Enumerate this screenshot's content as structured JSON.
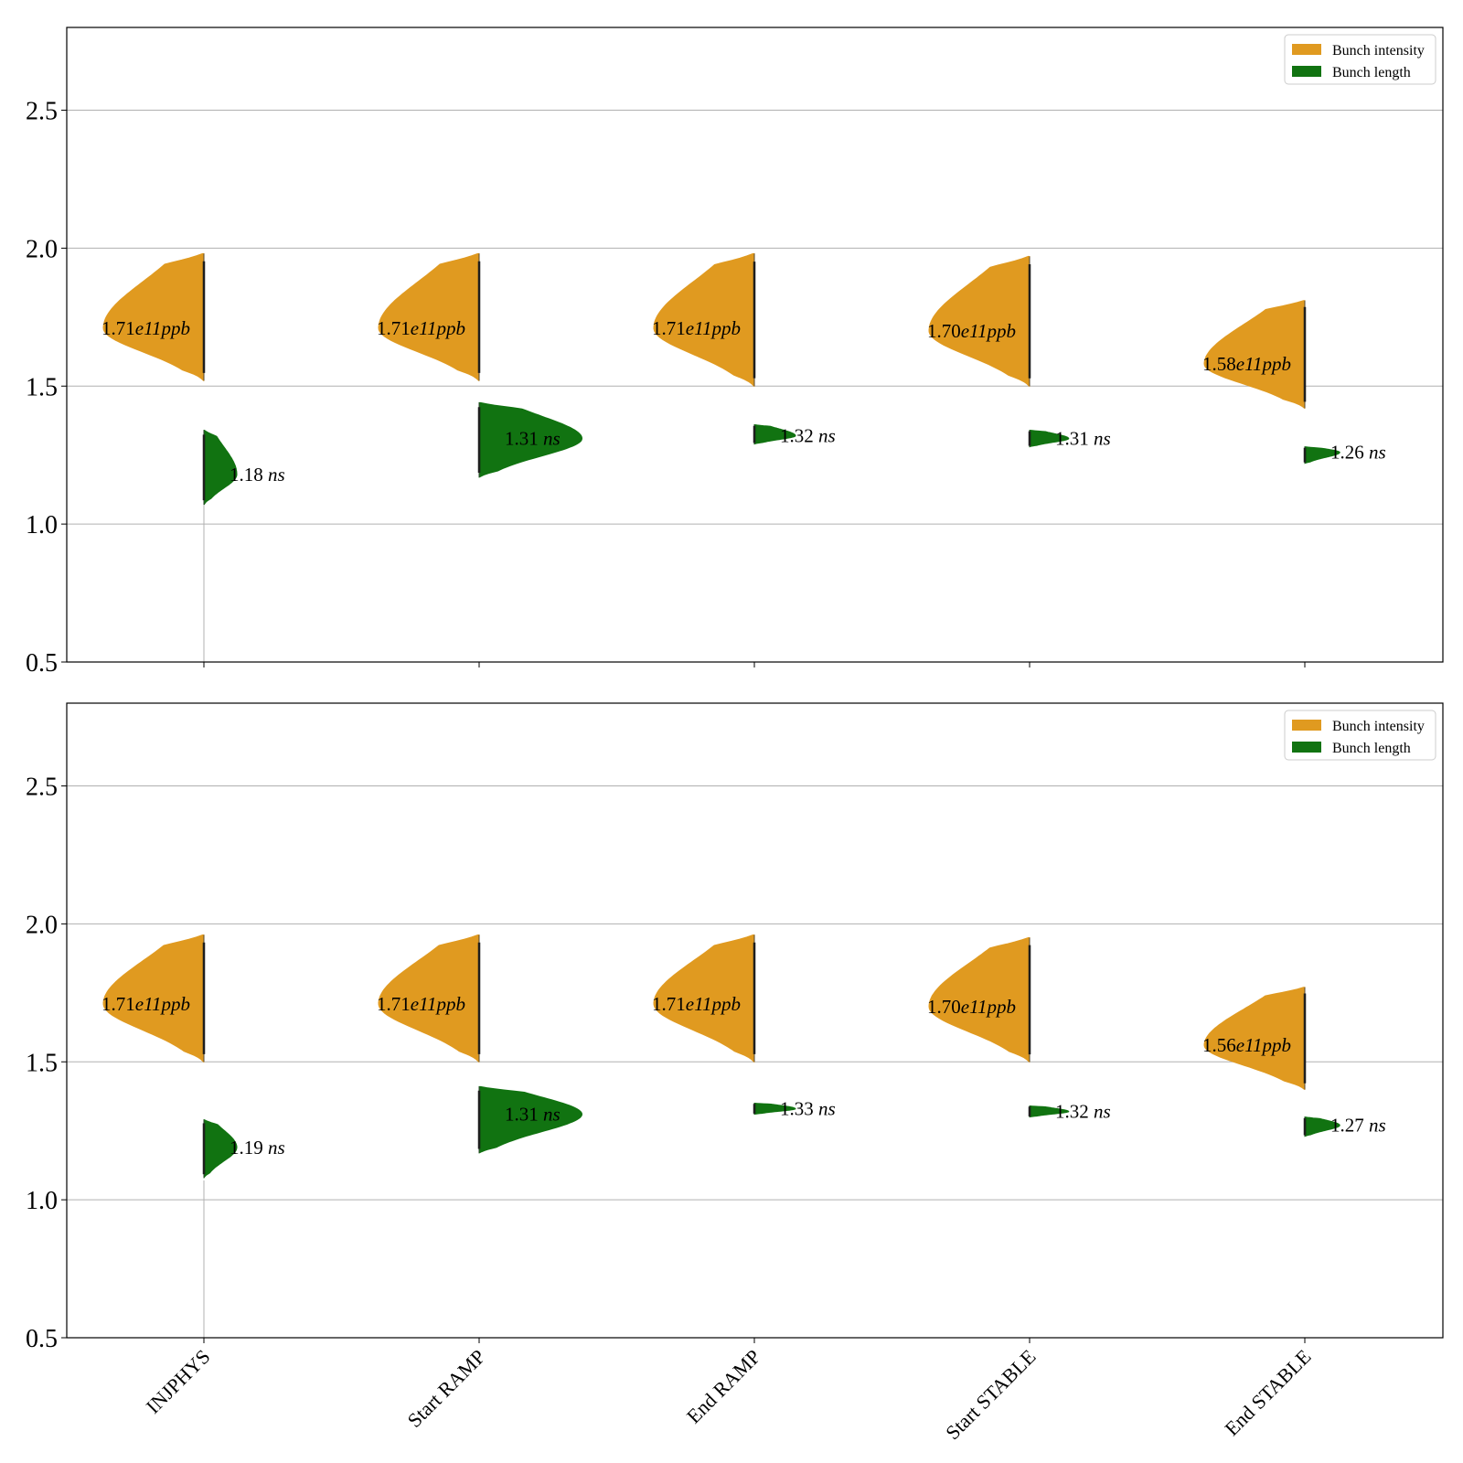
{
  "colors": {
    "intensity": "#e09a20",
    "length": "#117311",
    "grid": "#b0b0b0",
    "axis": "#000000"
  },
  "chart_data": [
    {
      "type": "violin",
      "categories": [
        "INJPHYS",
        "Start RAMP",
        "End RAMP",
        "Start STABLE",
        "End STABLE"
      ],
      "ylim": [
        0.5,
        2.8
      ],
      "yticks": [
        0.5,
        1.0,
        1.5,
        2.0,
        2.5
      ],
      "grid": true,
      "legend": {
        "placement": "top-right",
        "entries": [
          {
            "label": "Bunch intensity",
            "color": "#e09a20"
          },
          {
            "label": "Bunch length",
            "color": "#117311"
          }
        ]
      },
      "series": [
        {
          "name": "Bunch intensity",
          "side": "left",
          "median": [
            1.71,
            1.71,
            1.71,
            1.7,
            1.58
          ],
          "min": [
            1.52,
            1.52,
            1.5,
            1.5,
            1.42
          ],
          "max": [
            1.98,
            1.98,
            1.98,
            1.97,
            1.81
          ],
          "annotation_value": [
            "1.71",
            "1.71",
            "1.71",
            "1.70",
            "1.58"
          ],
          "annotation_unit": [
            "e11ppb",
            "e11ppb",
            "e11ppb",
            "e11ppb",
            "e11ppb"
          ]
        },
        {
          "name": "Bunch length",
          "side": "right",
          "median": [
            1.18,
            1.31,
            1.32,
            1.31,
            1.26
          ],
          "min": [
            1.07,
            1.17,
            1.29,
            1.28,
            1.22
          ],
          "max": [
            1.34,
            1.44,
            1.36,
            1.34,
            1.28
          ],
          "annotation_value": [
            "1.18",
            "1.31",
            "1.32",
            "1.31",
            "1.26"
          ],
          "annotation_unit": [
            "ns",
            "ns",
            "ns",
            "ns",
            "ns"
          ]
        }
      ]
    },
    {
      "type": "violin",
      "categories": [
        "INJPHYS",
        "Start RAMP",
        "End RAMP",
        "Start STABLE",
        "End STABLE"
      ],
      "ylim": [
        0.5,
        2.8
      ],
      "yticks": [
        0.5,
        1.0,
        1.5,
        2.0,
        2.5
      ],
      "grid": true,
      "legend": {
        "placement": "top-right",
        "entries": [
          {
            "label": "Bunch intensity",
            "color": "#e09a20"
          },
          {
            "label": "Bunch length",
            "color": "#117311"
          }
        ]
      },
      "series": [
        {
          "name": "Bunch intensity",
          "side": "left",
          "median": [
            1.71,
            1.71,
            1.71,
            1.7,
            1.56
          ],
          "min": [
            1.5,
            1.5,
            1.5,
            1.5,
            1.4
          ],
          "max": [
            1.96,
            1.96,
            1.96,
            1.95,
            1.77
          ],
          "annotation_value": [
            "1.71",
            "1.71",
            "1.71",
            "1.70",
            "1.56"
          ],
          "annotation_unit": [
            "e11ppb",
            "e11ppb",
            "e11ppb",
            "e11ppb",
            "e11ppb"
          ]
        },
        {
          "name": "Bunch length",
          "side": "right",
          "median": [
            1.19,
            1.31,
            1.33,
            1.32,
            1.27
          ],
          "min": [
            1.08,
            1.17,
            1.31,
            1.3,
            1.23
          ],
          "max": [
            1.29,
            1.41,
            1.35,
            1.34,
            1.3
          ],
          "annotation_value": [
            "1.19",
            "1.31",
            "1.33",
            "1.32",
            "1.27"
          ],
          "annotation_unit": [
            "ns",
            "ns",
            "ns",
            "ns",
            "ns"
          ]
        }
      ]
    }
  ]
}
